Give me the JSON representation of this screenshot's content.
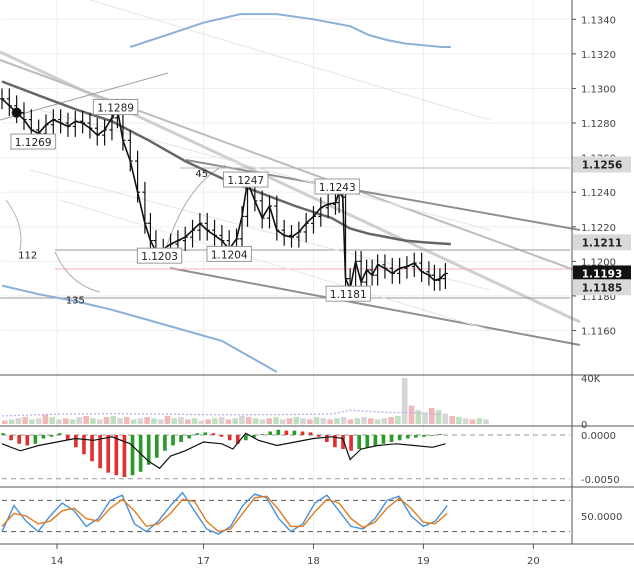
{
  "chart_data": [
    {
      "type": "candlestick",
      "panel": "price",
      "y_axis": {
        "ticks": [
          "1.1340",
          "1.1320",
          "1.1300",
          "1.1280",
          "1.1260",
          "1.1240",
          "1.1220",
          "1.1200",
          "1.1180",
          "1.1160"
        ],
        "range": [
          1.1136,
          1.135
        ]
      },
      "x_axis": {
        "ticks": [
          "14",
          "17",
          "18",
          "19",
          "20"
        ],
        "tick_index": [
          3,
          11,
          17,
          23,
          29
        ],
        "range": [
          0,
          31
        ]
      },
      "price_labels": [
        {
          "text": "1.1256",
          "value": 1.1256,
          "style": "grey"
        },
        {
          "text": "1.1211",
          "value": 1.1211,
          "style": "grey"
        },
        {
          "text": "1.1193",
          "value": 1.1193,
          "style": "black"
        },
        {
          "text": "1.1185",
          "value": 1.1185,
          "style": "grey"
        }
      ],
      "annotations": [
        {
          "text": "1.1289",
          "x": 6.2,
          "y": 1.1289
        },
        {
          "text": "1.1269",
          "x": 1.7,
          "y": 1.1269
        },
        {
          "text": "1.1247",
          "x": 13.3,
          "y": 1.1247
        },
        {
          "text": "1.1243",
          "x": 18.3,
          "y": 1.1243
        },
        {
          "text": "1.1203",
          "x": 8.6,
          "y": 1.1203
        },
        {
          "text": "1.1204",
          "x": 12.4,
          "y": 1.1204
        },
        {
          "text": "1.1181",
          "x": 18.9,
          "y": 1.1181
        },
        {
          "text": "45",
          "x": 10.9,
          "y": 1.1251
        },
        {
          "text": "112",
          "x": 1.4,
          "y": 1.1204
        },
        {
          "text": "135",
          "x": 4.0,
          "y": 1.1178
        }
      ],
      "series": [
        {
          "values": [
            [
              0,
              1.1294
            ],
            [
              0.4,
              1.129
            ],
            [
              0.8,
              1.1286
            ],
            [
              1.2,
              1.1282
            ],
            [
              1.6,
              1.1276
            ],
            [
              2.0,
              1.1274
            ],
            [
              2.4,
              1.1279
            ],
            [
              2.8,
              1.1282
            ],
            [
              3.2,
              1.128
            ],
            [
              3.6,
              1.1278
            ],
            [
              4.0,
              1.1281
            ],
            [
              4.4,
              1.128
            ],
            [
              4.8,
              1.1277
            ],
            [
              5.2,
              1.1273
            ],
            [
              5.6,
              1.1276
            ],
            [
              6.0,
              1.1283
            ],
            [
              6.3,
              1.1288
            ],
            [
              6.6,
              1.127
            ],
            [
              7.0,
              1.1258
            ],
            [
              7.4,
              1.124
            ],
            [
              7.8,
              1.1222
            ],
            [
              8.1,
              1.1212
            ],
            [
              8.4,
              1.1206
            ],
            [
              8.8,
              1.1207
            ],
            [
              9.2,
              1.121
            ],
            [
              9.6,
              1.1212
            ],
            [
              10.0,
              1.1214
            ],
            [
              10.4,
              1.1218
            ],
            [
              10.8,
              1.1222
            ],
            [
              11.2,
              1.1218
            ],
            [
              11.6,
              1.1215
            ],
            [
              12.0,
              1.1212
            ],
            [
              12.4,
              1.1207
            ],
            [
              12.8,
              1.1213
            ],
            [
              13.1,
              1.1226
            ],
            [
              13.4,
              1.1246
            ],
            [
              13.8,
              1.1235
            ],
            [
              14.2,
              1.1225
            ],
            [
              14.6,
              1.1232
            ],
            [
              15.0,
              1.1218
            ],
            [
              15.4,
              1.1215
            ],
            [
              15.8,
              1.1214
            ],
            [
              16.2,
              1.1217
            ],
            [
              16.6,
              1.1222
            ],
            [
              17.0,
              1.1226
            ],
            [
              17.4,
              1.1231
            ],
            [
              17.8,
              1.1233
            ],
            [
              18.2,
              1.1234
            ],
            [
              18.4,
              1.124
            ],
            [
              18.6,
              1.1237
            ],
            [
              18.75,
              1.119
            ],
            [
              19.0,
              1.1184
            ],
            [
              19.3,
              1.12
            ],
            [
              19.6,
              1.1188
            ],
            [
              19.9,
              1.1195
            ],
            [
              20.2,
              1.1192
            ],
            [
              20.5,
              1.1198
            ],
            [
              20.9,
              1.1196
            ],
            [
              21.3,
              1.1193
            ],
            [
              21.7,
              1.1196
            ],
            [
              22.1,
              1.1197
            ],
            [
              22.5,
              1.1199
            ],
            [
              22.9,
              1.1194
            ],
            [
              23.3,
              1.1192
            ],
            [
              23.6,
              1.1189
            ],
            [
              23.9,
              1.119
            ],
            [
              24.2,
              1.1193
            ]
          ]
        },
        {
          "values": [
            [
              0,
              1.1304
            ],
            [
              2,
              1.1296
            ],
            [
              4,
              1.1288
            ],
            [
              6,
              1.1281
            ],
            [
              8,
              1.127
            ],
            [
              10,
              1.1258
            ],
            [
              12,
              1.1248
            ],
            [
              14,
              1.124
            ],
            [
              16,
              1.1232
            ],
            [
              18,
              1.1225
            ],
            [
              19,
              1.1219
            ],
            [
              20,
              1.1216
            ],
            [
              21,
              1.1214
            ],
            [
              22,
              1.1212
            ],
            [
              23,
              1.1211
            ],
            [
              24.5,
              1.121
            ]
          ]
        },
        {
          "values": [
            [
              7,
              1.1324
            ],
            [
              9,
              1.1331
            ],
            [
              11,
              1.1338
            ],
            [
              13,
              1.1343
            ],
            [
              15,
              1.1343
            ],
            [
              17,
              1.134
            ],
            [
              19,
              1.1336
            ],
            [
              20,
              1.1331
            ],
            [
              21,
              1.1328
            ],
            [
              22,
              1.1326
            ],
            [
              23,
              1.1325
            ],
            [
              24,
              1.1324
            ],
            [
              24.5,
              1.1324
            ]
          ]
        },
        {
          "values": [
            [
              0,
              1.1186
            ],
            [
              2,
              1.1181
            ],
            [
              4,
              1.1177
            ],
            [
              6,
              1.1172
            ],
            [
              8,
              1.1166
            ],
            [
              10,
              1.116
            ],
            [
              12,
              1.1154
            ],
            [
              13,
              1.1148
            ],
            [
              14,
              1.1142
            ],
            [
              15,
              1.1136
            ]
          ]
        }
      ]
    },
    {
      "type": "bar",
      "panel": "volume",
      "y_axis": {
        "ticks": [
          "40K",
          "0"
        ],
        "range": [
          0,
          40000
        ]
      },
      "series": [
        {
          "values": [
            3000,
            4000,
            5000,
            6000,
            4000,
            5000,
            8000,
            6000,
            4000,
            5000,
            4000,
            6000,
            7000,
            5000,
            4000,
            6000,
            7000,
            5000,
            6000,
            4000,
            5000,
            6000,
            5000,
            4000,
            7000,
            5000,
            6000,
            4000,
            5000,
            3000,
            4000,
            5000,
            6000,
            4000,
            5000,
            7000,
            6000,
            5000,
            4000,
            5000,
            6000,
            4000,
            5000,
            6000,
            5000,
            4000,
            6000,
            5000,
            4000,
            5000,
            6000,
            4000,
            5000,
            6000,
            5000,
            4000,
            5000,
            6000,
            7000,
            40000,
            16000,
            12000,
            10000,
            14000,
            12000,
            9000,
            7000,
            6000,
            5000,
            4000,
            5000,
            4000
          ]
        },
        {
          "values": [
            [
              0,
              7000
            ],
            [
              3,
              8500
            ],
            [
              6,
              9000
            ],
            [
              9,
              8500
            ],
            [
              12,
              8000
            ],
            [
              15,
              8200
            ],
            [
              18,
              8600
            ],
            [
              19,
              12000
            ],
            [
              20,
              11000
            ],
            [
              21,
              10000
            ],
            [
              22,
              10000
            ],
            [
              23,
              9500
            ],
            [
              24,
              8000
            ]
          ]
        }
      ]
    },
    {
      "type": "bar",
      "panel": "macd",
      "y_axis": {
        "ticks": [
          "0.0000",
          "-0.0050"
        ],
        "range": [
          -0.0056,
          0.0008
        ]
      },
      "series": [
        {
          "values": [
            0.0002,
            -0.0006,
            -0.001,
            -0.0012,
            -0.001,
            -0.0004,
            -0.0002,
            0.0002,
            -0.0006,
            -0.0014,
            -0.0022,
            -0.003,
            -0.0038,
            -0.0043,
            -0.0046,
            -0.0048,
            -0.0046,
            -0.0042,
            -0.0034,
            -0.0026,
            -0.0018,
            -0.0012,
            -0.0008,
            -0.0004,
            0.0002,
            0.0003,
            0.0002,
            -0.0002,
            -0.0006,
            -0.001,
            -0.0006,
            -0.0003,
            0.0001,
            0.0004,
            0.0006,
            0.0005,
            0.0005,
            0.0004,
            0.0003,
            -0.0002,
            -0.0008,
            -0.0014,
            -0.0016,
            -0.0018,
            -0.0016,
            -0.0014,
            -0.0012,
            -0.001,
            -0.0008,
            -0.0006,
            -0.0004,
            -0.0003,
            -0.0002,
            -0.0001,
            0.0001
          ]
        },
        {
          "values": [
            [
              0,
              -0.001
            ],
            [
              1,
              -0.0018
            ],
            [
              2,
              -0.0012
            ],
            [
              3,
              -0.0008
            ],
            [
              4,
              -0.0004
            ],
            [
              5,
              -0.0006
            ],
            [
              6,
              -0.0002
            ],
            [
              7,
              -0.001
            ],
            [
              8,
              -0.003
            ],
            [
              8.6,
              -0.0038
            ],
            [
              9.2,
              -0.0024
            ],
            [
              10,
              -0.0018
            ],
            [
              11,
              -0.0008
            ],
            [
              12,
              -0.001
            ],
            [
              12.6,
              -0.0016
            ],
            [
              13.3,
              0.0002
            ],
            [
              14,
              -0.0006
            ],
            [
              15,
              -0.0012
            ],
            [
              16,
              -0.0008
            ],
            [
              17,
              -0.0004
            ],
            [
              18,
              -0.0002
            ],
            [
              18.6,
              -0.0004
            ],
            [
              19,
              -0.0028
            ],
            [
              19.6,
              -0.0016
            ],
            [
              20.5,
              -0.0012
            ],
            [
              21.5,
              -0.001
            ],
            [
              22.5,
              -0.0012
            ],
            [
              23.5,
              -0.0014
            ],
            [
              24.2,
              -0.001
            ]
          ]
        }
      ]
    },
    {
      "type": "line",
      "panel": "stochastic",
      "y_axis": {
        "ticks": [
          "50.0000"
        ],
        "range": [
          0,
          100
        ]
      },
      "series": [
        {
          "values": [
            20,
            70,
            40,
            20,
            50,
            75,
            60,
            30,
            45,
            80,
            90,
            35,
            20,
            40,
            70,
            95,
            60,
            25,
            15,
            30,
            70,
            92,
            85,
            45,
            20,
            35,
            75,
            90,
            60,
            30,
            25,
            45,
            80,
            88,
            50,
            30,
            40,
            70
          ]
        },
        {
          "values": [
            30,
            55,
            50,
            35,
            40,
            60,
            65,
            45,
            40,
            65,
            82,
            60,
            30,
            35,
            55,
            82,
            78,
            40,
            20,
            25,
            55,
            85,
            88,
            62,
            30,
            30,
            58,
            82,
            75,
            45,
            28,
            38,
            65,
            84,
            65,
            38,
            35,
            55
          ]
        }
      ]
    }
  ]
}
